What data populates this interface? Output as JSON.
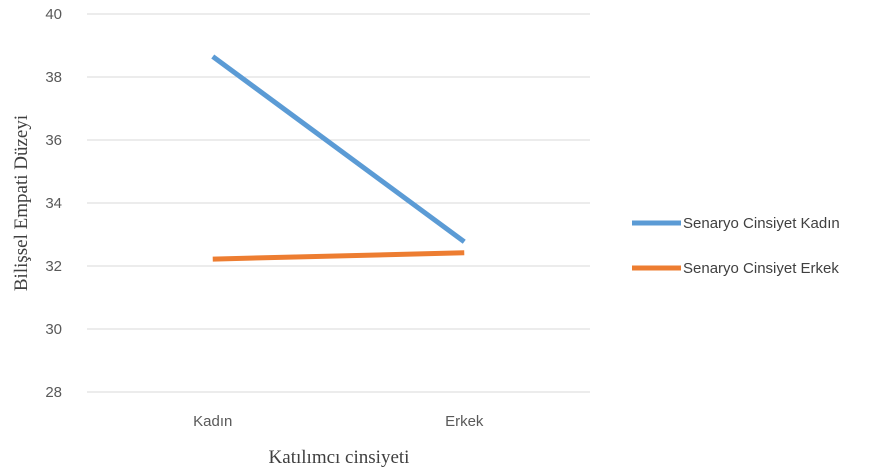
{
  "chart_data": {
    "type": "line",
    "title": "",
    "xlabel": "Katılımcı cinsiyeti",
    "ylabel": "Bilişsel Empati Düzeyi",
    "categories": [
      "Kadın",
      "Erkek"
    ],
    "ylim": [
      28,
      40
    ],
    "yticks": [
      28,
      30,
      32,
      34,
      36,
      38,
      40
    ],
    "grid": true,
    "legend": "right",
    "series": [
      {
        "name": "Senaryo Cinsiyet Kadın",
        "color": "#5b9bd5",
        "values": [
          38.65,
          32.77
        ]
      },
      {
        "name": "Senaryo Cinsiyet Erkek",
        "color": "#ed7d31",
        "values": [
          32.22,
          32.42
        ]
      }
    ]
  }
}
